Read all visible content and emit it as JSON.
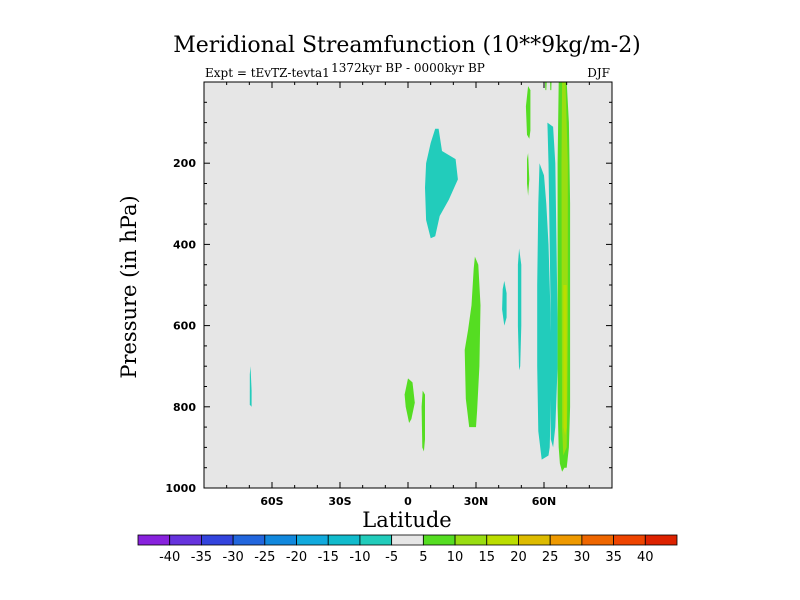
{
  "chart_data": {
    "type": "heatmap",
    "title": "Meridional Streamfunction (10**9kg/m-2)",
    "subtitle_left": "Expt = tEvTZ-tevta1",
    "subtitle_center": "1372kyr BP - 0000kyr BP",
    "subtitle_right": "DJF",
    "xlabel": "Latitude",
    "ylabel": "Pressure (in hPa)",
    "xlim": [
      -90,
      90
    ],
    "ylim": [
      1000,
      0
    ],
    "x_ticks": [
      {
        "value": -60,
        "label": "60S"
      },
      {
        "value": -30,
        "label": "30S"
      },
      {
        "value": 0,
        "label": "0"
      },
      {
        "value": 30,
        "label": "30N"
      },
      {
        "value": 60,
        "label": "60N"
      }
    ],
    "y_ticks": [
      {
        "value": 200,
        "label": "200"
      },
      {
        "value": 400,
        "label": "400"
      },
      {
        "value": 600,
        "label": "600"
      },
      {
        "value": 800,
        "label": "800"
      },
      {
        "value": 1000,
        "label": "1000"
      }
    ],
    "background_level": {
      "range": [
        -5,
        5
      ],
      "color": "#e6e6e6"
    },
    "regions": [
      {
        "level": "-10 to -5",
        "color": "#22ccbb",
        "points": [
          [
            -69.5,
            700
          ],
          [
            -69,
            760
          ],
          [
            -69,
            800
          ],
          [
            -69.8,
            795
          ],
          [
            -69.8,
            720
          ]
        ]
      },
      {
        "level": "-10 to -5",
        "color": "#22ccbb",
        "points": [
          [
            12,
            115
          ],
          [
            13.5,
            115
          ],
          [
            15,
            170
          ],
          [
            21,
            190
          ],
          [
            22,
            240
          ],
          [
            18,
            290
          ],
          [
            14,
            330
          ],
          [
            12,
            380
          ],
          [
            10,
            385
          ],
          [
            8,
            340
          ],
          [
            7.5,
            260
          ],
          [
            8,
            200
          ],
          [
            10,
            150
          ]
        ]
      },
      {
        "level": "-10 to -5",
        "color": "#22ccbb",
        "points": [
          [
            42.5,
            490
          ],
          [
            43.5,
            520
          ],
          [
            43.5,
            580
          ],
          [
            42.5,
            600
          ],
          [
            41.5,
            560
          ],
          [
            41.8,
            510
          ]
        ]
      },
      {
        "level": "-10 to -5",
        "color": "#22ccbb",
        "points": [
          [
            49,
            410
          ],
          [
            50,
            450
          ],
          [
            50,
            600
          ],
          [
            49.5,
            700
          ],
          [
            49,
            710
          ],
          [
            48.5,
            600
          ],
          [
            48.5,
            450
          ]
        ]
      },
      {
        "level": "-10 to -5",
        "color": "#22ccbb",
        "points": [
          [
            58,
            200
          ],
          [
            60,
            230
          ],
          [
            61,
            300
          ],
          [
            62,
            400
          ],
          [
            62.5,
            500
          ],
          [
            63,
            600
          ],
          [
            63.5,
            700
          ],
          [
            63,
            800
          ],
          [
            62.5,
            900
          ],
          [
            62,
            920
          ],
          [
            59,
            930
          ],
          [
            57.5,
            860
          ],
          [
            57,
            700
          ],
          [
            57,
            500
          ],
          [
            57.5,
            300
          ]
        ]
      },
      {
        "level": "-10 to -5",
        "color": "#22ccbb",
        "points": [
          [
            61.5,
            100
          ],
          [
            64,
            110
          ],
          [
            65,
            200
          ],
          [
            65.5,
            400
          ],
          [
            66,
            600
          ],
          [
            66,
            700
          ],
          [
            65,
            850
          ],
          [
            64,
            900
          ],
          [
            63,
            880
          ],
          [
            63,
            600
          ],
          [
            62.5,
            400
          ],
          [
            62,
            200
          ]
        ]
      },
      {
        "level": "5 to 10",
        "color": "#55dd22",
        "points": [
          [
            0,
            730
          ],
          [
            2,
            740
          ],
          [
            3,
            790
          ],
          [
            1.5,
            830
          ],
          [
            0.5,
            840
          ],
          [
            -1,
            800
          ],
          [
            -1.5,
            770
          ]
        ]
      },
      {
        "level": "5 to 10",
        "color": "#55dd22",
        "points": [
          [
            6.5,
            760
          ],
          [
            7.5,
            770
          ],
          [
            7.5,
            880
          ],
          [
            7,
            910
          ],
          [
            6.3,
            900
          ],
          [
            6,
            800
          ]
        ]
      },
      {
        "level": "5 to 10",
        "color": "#55dd22",
        "points": [
          [
            29.5,
            430
          ],
          [
            31,
            450
          ],
          [
            32,
            550
          ],
          [
            31.5,
            700
          ],
          [
            30.5,
            810
          ],
          [
            30,
            850
          ],
          [
            27,
            850
          ],
          [
            25.5,
            780
          ],
          [
            25,
            660
          ],
          [
            26.5,
            610
          ],
          [
            28,
            550
          ],
          [
            29,
            460
          ]
        ]
      },
      {
        "level": "5 to 10",
        "color": "#55dd22",
        "points": [
          [
            53,
            175
          ],
          [
            53.5,
            240
          ],
          [
            53,
            280
          ],
          [
            52.5,
            250
          ],
          [
            52.5,
            190
          ]
        ]
      },
      {
        "level": "5 to 10",
        "color": "#55dd22",
        "points": [
          [
            53,
            10
          ],
          [
            54,
            20
          ],
          [
            54,
            120
          ],
          [
            53.5,
            140
          ],
          [
            52.5,
            130
          ],
          [
            52,
            60
          ]
        ]
      },
      {
        "level": "5 to 10",
        "color": "#55dd22",
        "points": [
          [
            60.5,
            0
          ],
          [
            61.2,
            0
          ],
          [
            61,
            20
          ],
          [
            60.6,
            20
          ]
        ]
      },
      {
        "level": "5 to 10",
        "color": "#55dd22",
        "points": [
          [
            62.7,
            0
          ],
          [
            63.3,
            0
          ],
          [
            63.2,
            20
          ],
          [
            62.8,
            20
          ]
        ]
      },
      {
        "level": "5 to 10",
        "color": "#55dd22",
        "points": [
          [
            66.5,
            0
          ],
          [
            70,
            0
          ],
          [
            71,
            100
          ],
          [
            71.5,
            300
          ],
          [
            71.5,
            600
          ],
          [
            71.5,
            800
          ],
          [
            71,
            900
          ],
          [
            70,
            950
          ],
          [
            69,
            950
          ],
          [
            68,
            960
          ],
          [
            67,
            940
          ],
          [
            66.5,
            900
          ],
          [
            66,
            800
          ],
          [
            66,
            500
          ],
          [
            66,
            200
          ]
        ]
      },
      {
        "level": "10 to 15",
        "color": "#99dd11",
        "points": [
          [
            68,
            0
          ],
          [
            69.5,
            0
          ],
          [
            70.5,
            200
          ],
          [
            70.5,
            600
          ],
          [
            70.3,
            800
          ],
          [
            70,
            900
          ],
          [
            68.5,
            920
          ],
          [
            68,
            850
          ],
          [
            67.8,
            500
          ],
          [
            67.7,
            200
          ]
        ]
      },
      {
        "level": "15 to 20",
        "color": "#bbdd00",
        "points": [
          [
            68.5,
            500
          ],
          [
            70,
            500
          ],
          [
            70,
            850
          ],
          [
            69.3,
            870
          ],
          [
            68.6,
            850
          ]
        ]
      }
    ],
    "colorbar": {
      "levels": [
        "-40",
        "-35",
        "-30",
        "-25",
        "-20",
        "-15",
        "-10",
        "-5",
        "5",
        "10",
        "15",
        "20",
        "25",
        "30",
        "35",
        "40"
      ],
      "colors": [
        "#8822dd",
        "#6633dd",
        "#3344dd",
        "#2266dd",
        "#1188dd",
        "#11aadd",
        "#11bbcc",
        "#22ccbb",
        "#e6e6e6",
        "#55dd22",
        "#99dd11",
        "#bbdd00",
        "#ddbb00",
        "#ee9900",
        "#ee6600",
        "#ee4400",
        "#dd2200"
      ]
    }
  }
}
